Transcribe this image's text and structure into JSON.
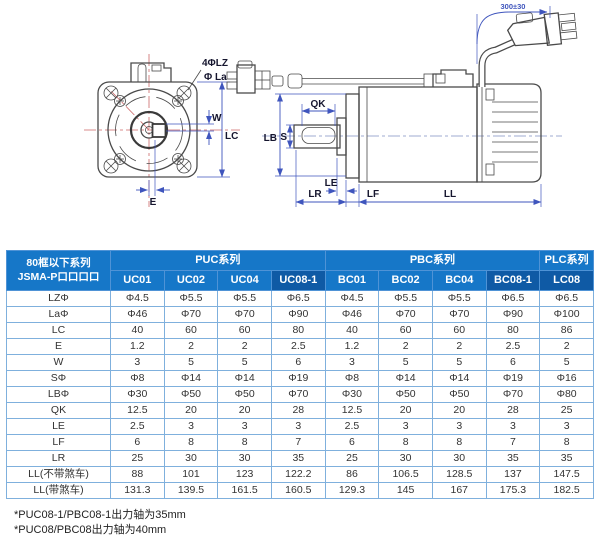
{
  "diagram": {
    "front_labels": {
      "holes": "4ΦLZ",
      "bolt_circle": "Φ La",
      "w": "W",
      "lc": "LC",
      "e": "E"
    },
    "side_labels": {
      "qk": "QK",
      "lb": "LB",
      "s": "S",
      "le": "LE",
      "lr": "LR",
      "lf": "LF",
      "ll": "LL"
    },
    "cable_dim": "300±30"
  },
  "table": {
    "corner_header": {
      "line1": "80框以下系列",
      "line2": "JSMA-P口口口口"
    },
    "groups": [
      {
        "label": "PUC系列",
        "span": 4
      },
      {
        "label": "PBC系列",
        "span": 4
      },
      {
        "label": "PLC系列",
        "span": 1
      }
    ],
    "models": [
      "UC01",
      "UC02",
      "UC04",
      "UC08-1",
      "BC01",
      "BC02",
      "BC04",
      "BC08-1",
      "LC08"
    ],
    "highlight_models": [
      "UC08-1",
      "BC08-1",
      "LC08"
    ],
    "rows": [
      {
        "label": "LZΦ",
        "values": [
          "Φ4.5",
          "Φ5.5",
          "Φ5.5",
          "Φ6.5",
          "Φ4.5",
          "Φ5.5",
          "Φ5.5",
          "Φ6.5",
          "Φ6.5"
        ]
      },
      {
        "label": "LaΦ",
        "values": [
          "Φ46",
          "Φ70",
          "Φ70",
          "Φ90",
          "Φ46",
          "Φ70",
          "Φ70",
          "Φ90",
          "Φ100"
        ]
      },
      {
        "label": "LC",
        "values": [
          "40",
          "60",
          "60",
          "80",
          "40",
          "60",
          "60",
          "80",
          "86"
        ]
      },
      {
        "label": "E",
        "values": [
          "1.2",
          "2",
          "2",
          "2.5",
          "1.2",
          "2",
          "2",
          "2.5",
          "2"
        ]
      },
      {
        "label": "W",
        "values": [
          "3",
          "5",
          "5",
          "6",
          "3",
          "5",
          "5",
          "6",
          "5"
        ]
      },
      {
        "label": "SΦ",
        "values": [
          "Φ8",
          "Φ14",
          "Φ14",
          "Φ19",
          "Φ8",
          "Φ14",
          "Φ14",
          "Φ19",
          "Φ16"
        ]
      },
      {
        "label": "LBΦ",
        "values": [
          "Φ30",
          "Φ50",
          "Φ50",
          "Φ70",
          "Φ30",
          "Φ50",
          "Φ50",
          "Φ70",
          "Φ80"
        ]
      },
      {
        "label": "QK",
        "values": [
          "12.5",
          "20",
          "20",
          "28",
          "12.5",
          "20",
          "20",
          "28",
          "25"
        ]
      },
      {
        "label": "LE",
        "values": [
          "2.5",
          "3",
          "3",
          "3",
          "2.5",
          "3",
          "3",
          "3",
          "3"
        ]
      },
      {
        "label": "LF",
        "values": [
          "6",
          "8",
          "8",
          "7",
          "6",
          "8",
          "8",
          "7",
          "8"
        ]
      },
      {
        "label": "LR",
        "values": [
          "25",
          "30",
          "30",
          "35",
          "25",
          "30",
          "30",
          "35",
          "35"
        ]
      },
      {
        "label": "LL(不带煞车)",
        "values": [
          "88",
          "101",
          "123",
          "122.2",
          "86",
          "106.5",
          "128.5",
          "137",
          "147.5"
        ]
      },
      {
        "label": "LL(带煞车)",
        "values": [
          "131.3",
          "139.5",
          "161.5",
          "160.5",
          "129.3",
          "145",
          "167",
          "175.3",
          "182.5"
        ]
      }
    ]
  },
  "footnotes": [
    "*PUC08-1/PBC08-1出力轴为35mm",
    "*PUC08/PBC08出力轴为40mm"
  ],
  "colors": {
    "header_blue": "#1677c8",
    "header_dark_blue": "#0f5aa5",
    "grid_border": "#7fb0dd",
    "dimension_blue": "#3f55bd",
    "centerline_red": "#cc6666",
    "ink_gray": "#4a4a4a"
  }
}
